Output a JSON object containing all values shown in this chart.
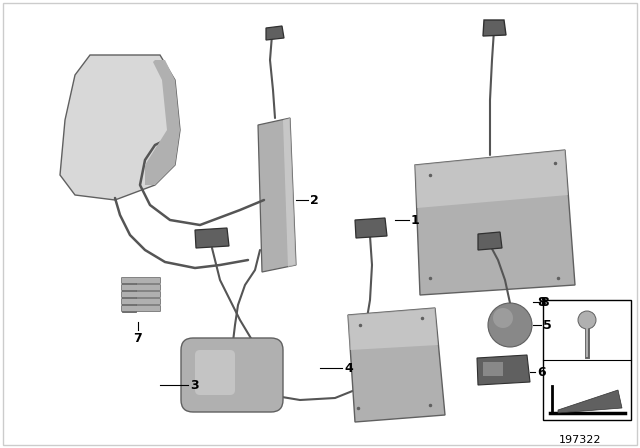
{
  "bg_color": "#ffffff",
  "ref_number": "197322",
  "gray_light": "#d8d8d8",
  "gray_mid": "#b0b0b0",
  "gray_dark": "#888888",
  "gray_darker": "#606060",
  "gray_panel": "#aaaaaa",
  "wire_color": "#555555",
  "label_fontsize": 9,
  "ref_fontsize": 8,
  "border_color": "#cccccc"
}
